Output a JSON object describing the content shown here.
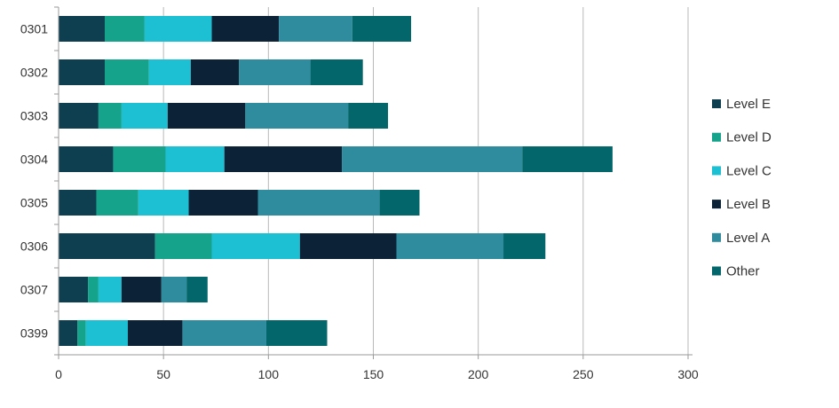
{
  "chart_data": {
    "type": "bar",
    "orientation": "horizontal",
    "stacked": true,
    "categories": [
      "0301",
      "0302",
      "0303",
      "0304",
      "0305",
      "0306",
      "0307",
      "0399"
    ],
    "series": [
      {
        "name": "Level E",
        "color": "#0d3f50",
        "values": [
          22,
          22,
          19,
          26,
          18,
          46,
          14,
          9
        ]
      },
      {
        "name": "Level D",
        "color": "#16a38b",
        "values": [
          19,
          21,
          11,
          25,
          20,
          27,
          5,
          4
        ]
      },
      {
        "name": "Level C",
        "color": "#1dbfd2",
        "values": [
          32,
          20,
          22,
          28,
          24,
          42,
          11,
          20
        ]
      },
      {
        "name": "Level B",
        "color": "#0b2237",
        "values": [
          32,
          23,
          37,
          56,
          33,
          46,
          19,
          26
        ]
      },
      {
        "name": "Level A",
        "color": "#2f8c9f",
        "values": [
          35,
          34,
          49,
          86,
          58,
          51,
          12,
          40
        ]
      },
      {
        "name": "Other",
        "color": "#02666a",
        "values": [
          28,
          25,
          19,
          43,
          19,
          20,
          10,
          29
        ]
      }
    ],
    "x_ticks": [
      0,
      50,
      100,
      150,
      200,
      250,
      300
    ],
    "xlim": [
      0,
      300
    ],
    "grid": "vertical",
    "legend_position": "right"
  }
}
